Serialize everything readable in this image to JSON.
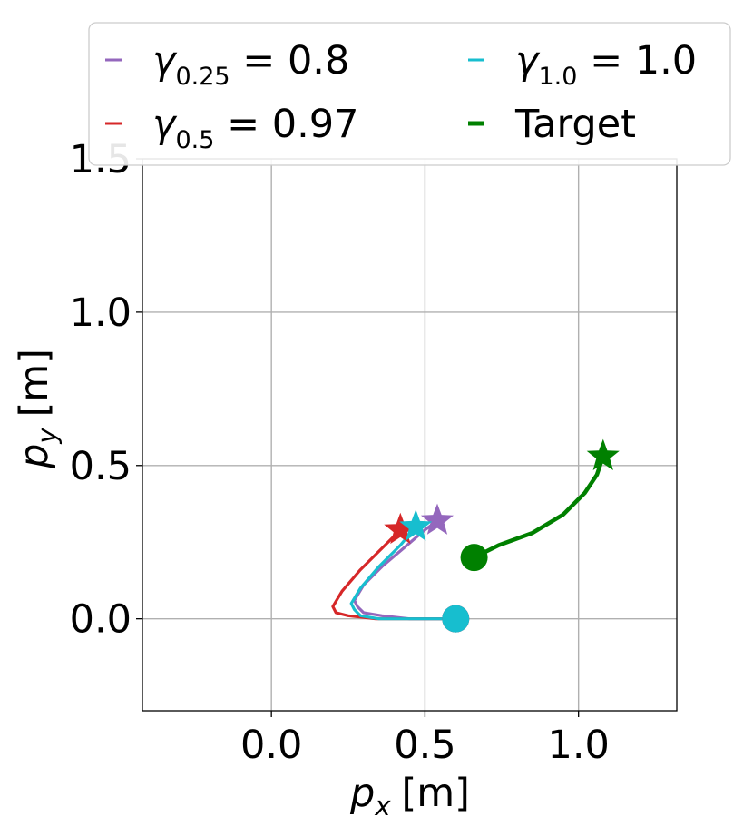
{
  "chart_data": {
    "type": "line",
    "xlabel": {
      "symbol": "p",
      "sub": "x",
      "unit": "[m]"
    },
    "ylabel": {
      "symbol": "p",
      "sub": "y",
      "unit": "[m]"
    },
    "xlim": [
      -0.42,
      1.32
    ],
    "ylim": [
      -0.3,
      1.5
    ],
    "xticks": [
      "0.0",
      "0.5",
      "1.0"
    ],
    "xtick_values": [
      0.0,
      0.5,
      1.0
    ],
    "yticks": [
      "0.0",
      "0.5",
      "1.0",
      "1.5"
    ],
    "ytick_values": [
      0.0,
      0.5,
      1.0,
      1.5
    ],
    "grid": true,
    "legend": {
      "placement": "top",
      "ncol": 2,
      "entries": [
        {
          "series": "gamma_0.25",
          "sym": "γ",
          "sub": "0.25",
          "rest": " = 0.8"
        },
        {
          "series": "gamma_1.0",
          "sym": "γ",
          "sub": "1.0",
          "rest": " = 1.0"
        },
        {
          "series": "gamma_0.5",
          "sym": "γ",
          "sub": "0.5",
          "rest": " = 0.97"
        },
        {
          "series": "target",
          "sym": "",
          "sub": "",
          "rest": "Target"
        }
      ]
    },
    "series": [
      {
        "id": "gamma_0.25",
        "color": "#9467bd",
        "x": [
          0.6,
          0.55,
          0.45,
          0.36,
          0.3,
          0.28,
          0.27,
          0.3,
          0.36,
          0.43,
          0.5,
          0.54
        ],
        "y": [
          0.0,
          0.0,
          0.0,
          0.01,
          0.02,
          0.04,
          0.06,
          0.11,
          0.17,
          0.23,
          0.29,
          0.32
        ],
        "start_marker": "circle",
        "end_marker": "star"
      },
      {
        "id": "gamma_0.5",
        "color": "#d62728",
        "x": [
          0.6,
          0.55,
          0.45,
          0.34,
          0.25,
          0.21,
          0.2,
          0.23,
          0.29,
          0.36,
          0.42
        ],
        "y": [
          0.0,
          0.0,
          0.0,
          0.0,
          0.01,
          0.02,
          0.04,
          0.09,
          0.16,
          0.23,
          0.29
        ],
        "start_marker": "circle",
        "end_marker": "star"
      },
      {
        "id": "gamma_1.0",
        "color": "#17becf",
        "x": [
          0.6,
          0.55,
          0.45,
          0.35,
          0.29,
          0.27,
          0.26,
          0.29,
          0.35,
          0.42,
          0.47
        ],
        "y": [
          0.0,
          0.0,
          0.0,
          0.0,
          0.01,
          0.03,
          0.05,
          0.1,
          0.17,
          0.24,
          0.3
        ],
        "start_marker": "circle",
        "end_marker": "star"
      },
      {
        "id": "target",
        "color": "#008000",
        "x": [
          0.66,
          0.74,
          0.85,
          0.95,
          1.02,
          1.06,
          1.08
        ],
        "y": [
          0.2,
          0.24,
          0.28,
          0.34,
          0.41,
          0.47,
          0.53
        ],
        "start_marker": "circle",
        "end_marker": "star"
      }
    ]
  }
}
